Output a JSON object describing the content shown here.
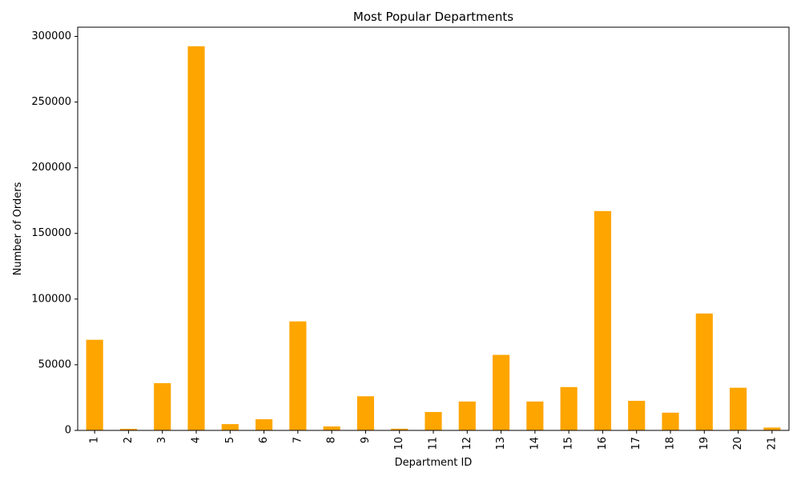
{
  "chart_data": {
    "type": "bar",
    "title": "Most Popular Departments",
    "xlabel": "Department ID",
    "ylabel": "Number of Orders",
    "categories": [
      "1",
      "2",
      "3",
      "4",
      "5",
      "6",
      "7",
      "8",
      "9",
      "10",
      "11",
      "12",
      "13",
      "14",
      "15",
      "16",
      "17",
      "18",
      "19",
      "20",
      "21"
    ],
    "values": [
      69000,
      1200,
      36000,
      292500,
      4800,
      8500,
      83000,
      3000,
      26000,
      1300,
      14000,
      22000,
      57500,
      22000,
      33000,
      167000,
      22500,
      13500,
      89000,
      32500,
      2200
    ],
    "ylim": [
      0,
      307000
    ],
    "yticks": [
      0,
      50000,
      100000,
      150000,
      200000,
      250000,
      300000
    ],
    "bar_color": "#FFA500",
    "grid": false,
    "legend": "none"
  }
}
